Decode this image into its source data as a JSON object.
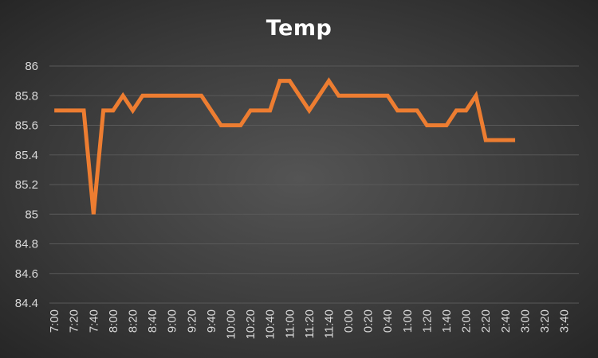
{
  "chart_data": {
    "type": "line",
    "title": "Temp",
    "xlabel": "",
    "ylabel": "",
    "ylim": [
      84.4,
      86
    ],
    "yticks": [
      84.4,
      84.6,
      84.8,
      85,
      85.2,
      85.4,
      85.6,
      85.8,
      86
    ],
    "categories": [
      "7:00",
      "7:10",
      "7:20",
      "7:30",
      "7:40",
      "7:50",
      "8:00",
      "8:10",
      "8:20",
      "8:30",
      "8:40",
      "8:50",
      "9:00",
      "9:10",
      "9:20",
      "9:30",
      "9:40",
      "9:50",
      "10:00",
      "10:10",
      "10:20",
      "10:30",
      "10:40",
      "10:50",
      "11:00",
      "11:10",
      "11:20",
      "11:30",
      "11:40",
      "11:50",
      "0:00",
      "0:10",
      "0:20",
      "0:30",
      "0:40",
      "0:50",
      "1:00",
      "1:10",
      "1:20",
      "1:30",
      "1:40",
      "1:50",
      "2:00",
      "2:10",
      "2:20",
      "2:30",
      "2:40",
      "2:50",
      "3:00",
      "3:10",
      "3:20",
      "3:30",
      "3:40",
      "3:50"
    ],
    "tick_labels": [
      "7:00",
      "7:20",
      "7:40",
      "8:00",
      "8:20",
      "8:40",
      "9:00",
      "9:20",
      "9:40",
      "10:00",
      "10:20",
      "10:40",
      "11:00",
      "11:20",
      "11:40",
      "0:00",
      "0:20",
      "0:40",
      "1:00",
      "1:20",
      "1:40",
      "2:00",
      "2:20",
      "2:40",
      "3:00",
      "3:20",
      "3:40"
    ],
    "series": [
      {
        "values": [
          85.7,
          85.7,
          85.7,
          85.7,
          85.0,
          85.7,
          85.7,
          85.8,
          85.7,
          85.8,
          85.8,
          85.8,
          85.8,
          85.8,
          85.8,
          85.8,
          85.7,
          85.6,
          85.6,
          85.6,
          85.7,
          85.7,
          85.7,
          85.9,
          85.9,
          85.8,
          85.7,
          85.8,
          85.9,
          85.8,
          85.8,
          85.8,
          85.8,
          85.8,
          85.8,
          85.7,
          85.7,
          85.7,
          85.6,
          85.6,
          85.6,
          85.7,
          85.7,
          85.8,
          85.5,
          85.5,
          85.5,
          85.5,
          null,
          null,
          null,
          null,
          null,
          null
        ],
        "color": "#ED7D31"
      }
    ],
    "grid": true,
    "legend": "none"
  },
  "colors": {
    "line": "#ED7D31",
    "gridline": "#595959",
    "text": "#d9d9d9",
    "title": "#ffffff"
  }
}
